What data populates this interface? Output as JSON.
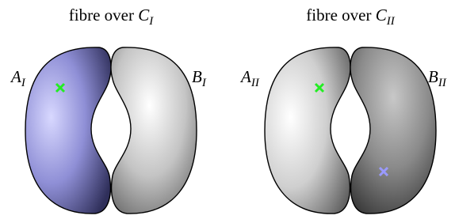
{
  "panels": [
    {
      "title": "fibre over ",
      "curve": "C",
      "curve_sub": "I",
      "left_label": "A",
      "left_sub": "I",
      "right_label": "B",
      "right_sub": "I"
    },
    {
      "title": "fibre over ",
      "curve": "C",
      "curve_sub": "II",
      "left_label": "A",
      "left_sub": "II",
      "right_label": "B",
      "right_sub": "II"
    }
  ]
}
